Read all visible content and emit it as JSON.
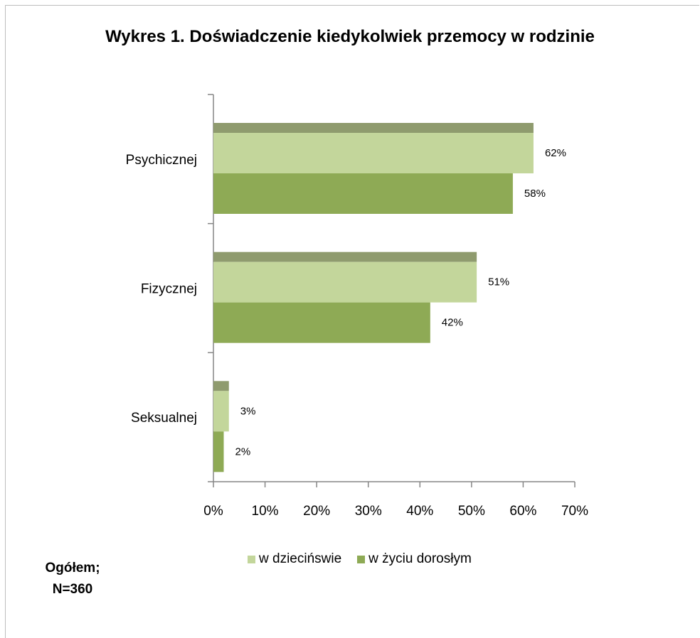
{
  "chart_data": {
    "type": "bar",
    "orientation": "horizontal",
    "title": "Wykres 1. Doświadczenie kiedykolwiek przemocy w rodzinie",
    "categories": [
      "Psychicznej",
      "Fizycznej",
      "Seksualnej"
    ],
    "series": [
      {
        "name": "w dziecińswie",
        "values": [
          62,
          51,
          3
        ],
        "labels": [
          "62%",
          "51%",
          "3%"
        ],
        "color": "#c3d69b"
      },
      {
        "name": "w życiu dorosłym",
        "values": [
          58,
          42,
          2
        ],
        "labels": [
          "58%",
          "42%",
          "2%"
        ],
        "color": "#8eaa55"
      }
    ],
    "xlim": [
      0,
      70
    ],
    "xticks": [
      "0%",
      "10%",
      "20%",
      "30%",
      "40%",
      "50%",
      "60%",
      "70%"
    ],
    "grid": false,
    "legend": "bottom",
    "top_face_color": "#8f9b6e"
  },
  "note": {
    "line1": "Ogółem;",
    "line2": "N=360"
  }
}
